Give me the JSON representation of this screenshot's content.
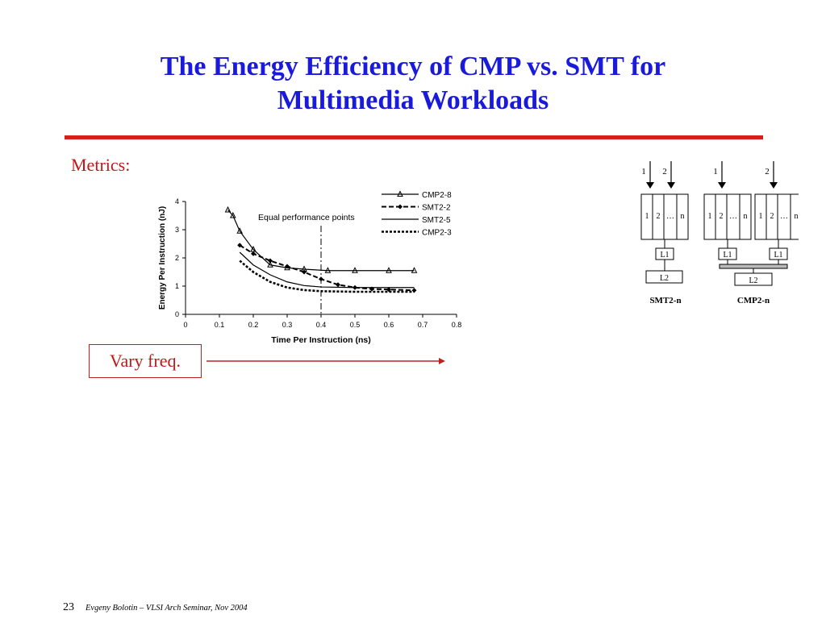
{
  "slide": {
    "title_line1": "The Energy Efficiency of CMP vs. SMT for",
    "title_line2": "Multimedia Workloads",
    "metrics_label": "Metrics:",
    "vary_label": "Vary freq.",
    "page_number": "23",
    "footer_text": "Evgeny Bolotin – VLSI Arch Seminar, Nov 2004",
    "colors": {
      "title": "#1a1adc",
      "accent": "#d42020",
      "text_red": "#c01818"
    }
  },
  "chart_data": {
    "type": "line",
    "title": "",
    "xlabel": "Time Per Instruction (ns)",
    "ylabel": "Energy Per Instruction (nJ)",
    "xlim": [
      0,
      0.8
    ],
    "ylim": [
      0,
      4
    ],
    "xticks": [
      "0",
      "0.1",
      "0.2",
      "0.3",
      "0.4",
      "0.5",
      "0.6",
      "0.7",
      "0.8"
    ],
    "yticks": [
      "0",
      "1",
      "2",
      "3",
      "4"
    ],
    "annotation": {
      "text": "Equal performance points",
      "x": 0.4
    },
    "legend_position": "top-right",
    "series": [
      {
        "name": "CMP2-8",
        "style": "solid",
        "marker": "triangle",
        "x": [
          0.125,
          0.14,
          0.16,
          0.2,
          0.25,
          0.3,
          0.35,
          0.42,
          0.5,
          0.6,
          0.675
        ],
        "y": [
          3.7,
          3.5,
          2.95,
          2.3,
          1.75,
          1.65,
          1.6,
          1.55,
          1.55,
          1.55,
          1.55
        ]
      },
      {
        "name": "SMT2-2",
        "style": "dashed",
        "marker": "diamond",
        "x": [
          0.16,
          0.2,
          0.25,
          0.3,
          0.35,
          0.4,
          0.45,
          0.5,
          0.55,
          0.6,
          0.675
        ],
        "y": [
          2.45,
          2.15,
          1.9,
          1.7,
          1.5,
          1.25,
          1.05,
          0.95,
          0.9,
          0.88,
          0.85
        ]
      },
      {
        "name": "SMT2-5",
        "style": "solid",
        "marker": "none",
        "x": [
          0.16,
          0.2,
          0.25,
          0.3,
          0.35,
          0.4,
          0.5,
          0.6,
          0.675
        ],
        "y": [
          2.2,
          1.75,
          1.4,
          1.15,
          1.02,
          0.97,
          0.95,
          0.95,
          0.95
        ]
      },
      {
        "name": "CMP2-3",
        "style": "dotted",
        "marker": "none",
        "x": [
          0.16,
          0.2,
          0.25,
          0.3,
          0.35,
          0.4,
          0.5,
          0.6,
          0.675
        ],
        "y": [
          1.9,
          1.5,
          1.15,
          0.95,
          0.86,
          0.82,
          0.8,
          0.8,
          0.8
        ]
      }
    ]
  },
  "diagram": {
    "smt": {
      "caption": "SMT2-n",
      "inputs": [
        "1",
        "2"
      ],
      "threads": [
        "1",
        "2",
        "…",
        "n"
      ],
      "l1": "L1",
      "l2": "L2"
    },
    "cmp": {
      "caption": "CMP2-n",
      "inputs": [
        "1",
        "2"
      ],
      "threads": [
        "1",
        "2",
        "…",
        "n"
      ],
      "l1": "L1",
      "l2": "L2"
    }
  }
}
